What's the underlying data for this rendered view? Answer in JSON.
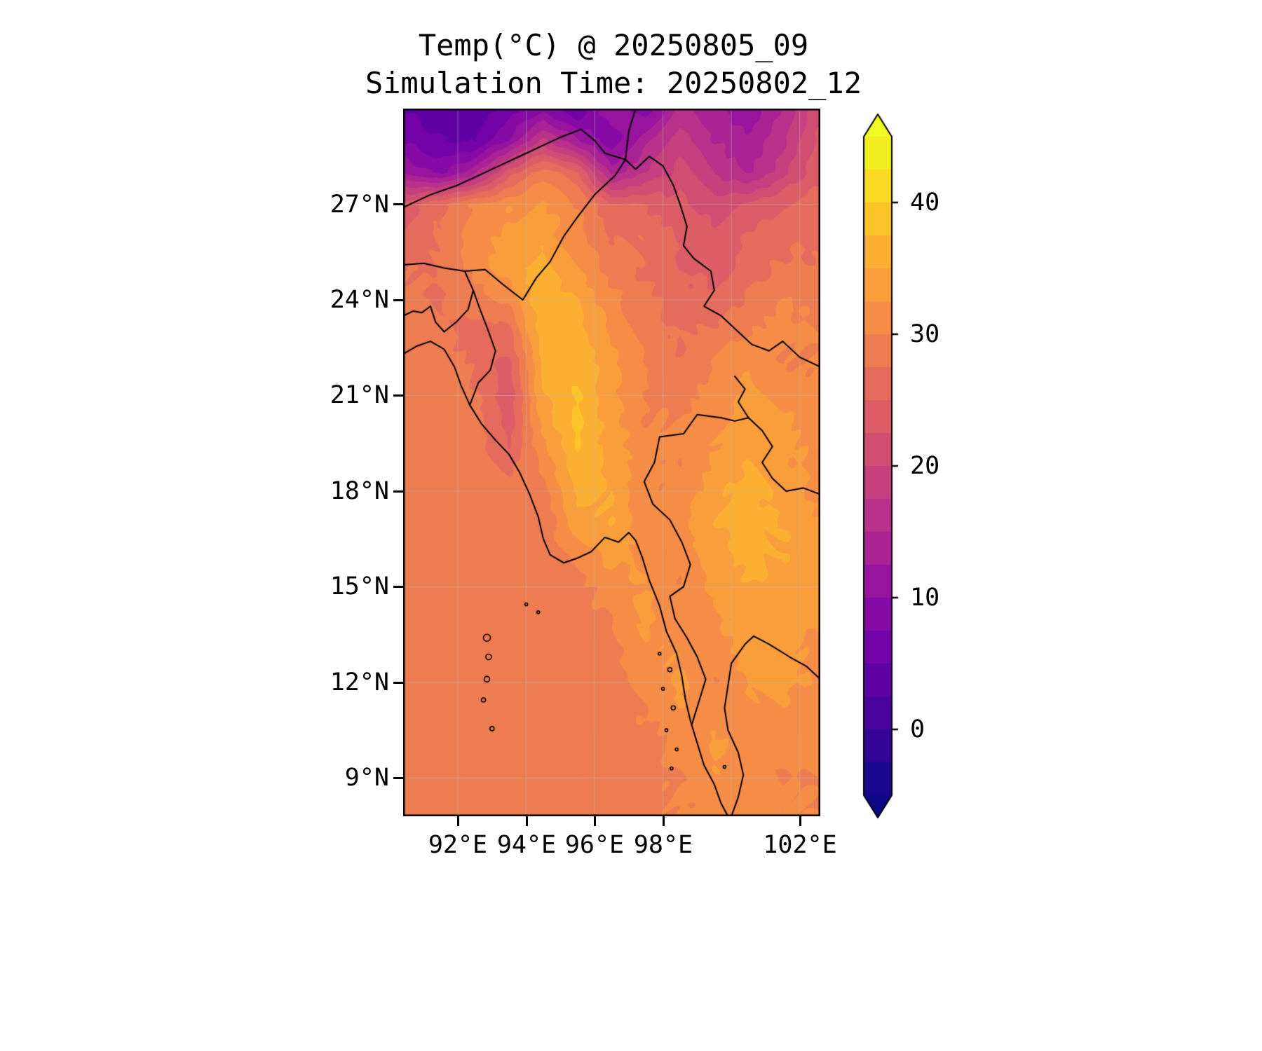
{
  "title": {
    "line1": "Temp(°C) @ 20250805_09",
    "line2": "Simulation Time: 20250802_12"
  },
  "axes": {
    "lat_ticks": [
      {
        "label": "27°N",
        "value": 27
      },
      {
        "label": "24°N",
        "value": 24
      },
      {
        "label": "21°N",
        "value": 21
      },
      {
        "label": "18°N",
        "value": 18
      },
      {
        "label": "15°N",
        "value": 15
      },
      {
        "label": "12°N",
        "value": 12
      },
      {
        "label": "9°N",
        "value": 9
      }
    ],
    "lon_ticks": [
      {
        "label": "92°E",
        "value": 92
      },
      {
        "label": "94°E",
        "value": 94
      },
      {
        "label": "96°E",
        "value": 96
      },
      {
        "label": "98°E",
        "value": 98
      },
      {
        "label": "102°E",
        "value": 102
      }
    ]
  },
  "colorbar": {
    "ticks": [
      {
        "label": "40",
        "value": 40
      },
      {
        "label": "30",
        "value": 30
      },
      {
        "label": "20",
        "value": 20
      },
      {
        "label": "10",
        "value": 10
      },
      {
        "label": "0",
        "value": 0
      }
    ],
    "vmin": -5,
    "vmax": 45,
    "step": 2.5,
    "extend": "both"
  },
  "chart_data": {
    "type": "heatmap",
    "title": "Temp(°C) @ 20250805_09",
    "subtitle": "Simulation Time: 20250802_12",
    "units": "°C",
    "lon_range": [
      90.4,
      102.6
    ],
    "lat_range": [
      7.8,
      30.0
    ],
    "value_range": [
      -5,
      45
    ],
    "level_step": 2.5,
    "colormap": "plasma",
    "colormap_stops": [
      [
        0.0,
        "#0d0887"
      ],
      [
        0.1,
        "#41049d"
      ],
      [
        0.2,
        "#6a00a8"
      ],
      [
        0.3,
        "#8f0da4"
      ],
      [
        0.4,
        "#b12a90"
      ],
      [
        0.5,
        "#cc4778"
      ],
      [
        0.6,
        "#e16462"
      ],
      [
        0.7,
        "#f2844b"
      ],
      [
        0.8,
        "#fca636"
      ],
      [
        0.9,
        "#fcce25"
      ],
      [
        1.0,
        "#f0f921"
      ]
    ],
    "gridlines": {
      "lons": [
        92,
        94,
        96,
        98,
        100,
        102
      ],
      "lats": [
        27,
        24,
        21,
        18,
        15,
        12,
        9
      ]
    },
    "grid_lons": [
      90.5,
      91.5,
      92.5,
      93.5,
      94.5,
      95.5,
      96.5,
      97.5,
      98.5,
      99.5,
      100.5,
      101.5,
      102.5
    ],
    "grid_lats": [
      30,
      29,
      28,
      27,
      26,
      25,
      24,
      23,
      22,
      21,
      20,
      19,
      18,
      17,
      16,
      15,
      14,
      13,
      12,
      11,
      10,
      9,
      8
    ],
    "values": [
      [
        5,
        3,
        3,
        6,
        9,
        5,
        12,
        8,
        16,
        13,
        10,
        15,
        22
      ],
      [
        7,
        5,
        5,
        10,
        18,
        13,
        8,
        14,
        19,
        15,
        13,
        17,
        23
      ],
      [
        12,
        9,
        14,
        24,
        29,
        25,
        14,
        18,
        21,
        17,
        15,
        19,
        24
      ],
      [
        24,
        27,
        30,
        32,
        33,
        30,
        25,
        25,
        23,
        21,
        23,
        25,
        26
      ],
      [
        26,
        28,
        31,
        33,
        34,
        31,
        27,
        27,
        25,
        23,
        25,
        27,
        27
      ],
      [
        27,
        28,
        31,
        34,
        36,
        33,
        29,
        27,
        25,
        24,
        26,
        28,
        28
      ],
      [
        28,
        27,
        29,
        31,
        37,
        35,
        31,
        28,
        26,
        26,
        28,
        30,
        29
      ],
      [
        29,
        28,
        26,
        27,
        37,
        36,
        32,
        29,
        27,
        28,
        30,
        31,
        30
      ],
      [
        29,
        29,
        27,
        24,
        36,
        37,
        33,
        30,
        28,
        30,
        32,
        30,
        30
      ],
      [
        29,
        29,
        28,
        23,
        35,
        38,
        33,
        30,
        29,
        31,
        33,
        32,
        31
      ],
      [
        29,
        29,
        29,
        24,
        33,
        38,
        34,
        30,
        30,
        32,
        34,
        33,
        31
      ],
      [
        29,
        29,
        29,
        26,
        31,
        37,
        34,
        31,
        30,
        33,
        35,
        33,
        32
      ],
      [
        29,
        29,
        29,
        29,
        29,
        36,
        35,
        30,
        31,
        34,
        36,
        34,
        32
      ],
      [
        29,
        29,
        29,
        29,
        28,
        34,
        35,
        31,
        32,
        35,
        36,
        35,
        33
      ],
      [
        29,
        29,
        29,
        29,
        29,
        30,
        34,
        32,
        30,
        34,
        36,
        35,
        33
      ],
      [
        29,
        29,
        29,
        29,
        29,
        29,
        31,
        33,
        30,
        33,
        35,
        34,
        33
      ],
      [
        29,
        29,
        29,
        29,
        29,
        29,
        30,
        33,
        31,
        32,
        34,
        34,
        33
      ],
      [
        29,
        29,
        29,
        29,
        29,
        29,
        29,
        32,
        32,
        31,
        34,
        33,
        32
      ],
      [
        29,
        29,
        29,
        29,
        29,
        29,
        29,
        31,
        33,
        30,
        33,
        33,
        32
      ],
      [
        29,
        29,
        29,
        29,
        29,
        29,
        29,
        30,
        32,
        31,
        32,
        32,
        31
      ],
      [
        29,
        29,
        29,
        29,
        29,
        29,
        29,
        29,
        31,
        33,
        31,
        31,
        31
      ],
      [
        29,
        29,
        29,
        29,
        29,
        29,
        29,
        29,
        30,
        32,
        31,
        30,
        30
      ],
      [
        29,
        29,
        29,
        29,
        29,
        29,
        29,
        29,
        30,
        31,
        32,
        30,
        30
      ]
    ],
    "coastlines": [
      {
        "name": "bengal-myanmar-coast",
        "points": [
          [
            90.4,
            22.3
          ],
          [
            90.8,
            22.55
          ],
          [
            91.2,
            22.7
          ],
          [
            91.6,
            22.45
          ],
          [
            91.9,
            21.9
          ],
          [
            92.1,
            21.3
          ],
          [
            92.35,
            20.7
          ],
          [
            92.7,
            20.1
          ],
          [
            93.1,
            19.6
          ],
          [
            93.5,
            19.15
          ],
          [
            93.8,
            18.6
          ],
          [
            94.1,
            17.9
          ],
          [
            94.35,
            17.2
          ],
          [
            94.5,
            16.5
          ],
          [
            94.7,
            16.0
          ],
          [
            95.1,
            15.75
          ],
          [
            95.5,
            15.9
          ],
          [
            95.9,
            16.1
          ],
          [
            96.3,
            16.55
          ],
          [
            96.7,
            16.4
          ],
          [
            97.0,
            16.7
          ],
          [
            97.2,
            16.45
          ],
          [
            97.4,
            15.9
          ],
          [
            97.6,
            15.2
          ],
          [
            97.9,
            14.4
          ],
          [
            98.1,
            13.6
          ],
          [
            98.4,
            12.9
          ],
          [
            98.55,
            12.2
          ],
          [
            98.65,
            11.5
          ],
          [
            98.8,
            10.8
          ],
          [
            99.0,
            10.1
          ],
          [
            99.2,
            9.4
          ],
          [
            99.5,
            8.8
          ],
          [
            99.7,
            8.2
          ],
          [
            99.9,
            7.8
          ]
        ]
      },
      {
        "name": "gulf-of-thailand-coast",
        "points": [
          [
            100.0,
            7.8
          ],
          [
            100.2,
            8.4
          ],
          [
            100.35,
            9.1
          ],
          [
            100.2,
            9.8
          ],
          [
            99.9,
            10.5
          ],
          [
            99.8,
            11.2
          ],
          [
            99.9,
            11.9
          ],
          [
            100.0,
            12.6
          ],
          [
            100.4,
            13.2
          ],
          [
            100.65,
            13.45
          ],
          [
            101.1,
            13.2
          ],
          [
            101.7,
            12.8
          ],
          [
            102.2,
            12.5
          ],
          [
            102.6,
            12.1
          ]
        ]
      },
      {
        "name": "bangladesh-border",
        "points": [
          [
            90.4,
            25.1
          ],
          [
            91.0,
            25.15
          ],
          [
            91.6,
            25.0
          ],
          [
            92.2,
            24.9
          ],
          [
            92.45,
            24.3
          ],
          [
            92.3,
            23.7
          ],
          [
            91.95,
            23.3
          ],
          [
            91.6,
            23.0
          ],
          [
            91.35,
            23.3
          ],
          [
            91.2,
            23.8
          ],
          [
            90.95,
            23.6
          ],
          [
            90.7,
            23.65
          ],
          [
            90.4,
            23.5
          ]
        ]
      },
      {
        "name": "india-myanmar-border",
        "points": [
          [
            92.45,
            24.3
          ],
          [
            92.65,
            23.7
          ],
          [
            92.9,
            23.0
          ],
          [
            93.1,
            22.4
          ],
          [
            92.95,
            21.8
          ],
          [
            92.6,
            21.4
          ],
          [
            92.35,
            20.7
          ]
        ]
      },
      {
        "name": "myanmar-china-border",
        "points": [
          [
            92.2,
            24.9
          ],
          [
            92.8,
            24.95
          ],
          [
            93.3,
            24.5
          ],
          [
            93.9,
            24.0
          ],
          [
            94.3,
            24.7
          ],
          [
            94.7,
            25.2
          ],
          [
            95.1,
            26.0
          ],
          [
            95.5,
            26.6
          ],
          [
            96.0,
            27.3
          ],
          [
            96.6,
            27.9
          ],
          [
            96.9,
            28.4
          ],
          [
            97.2,
            28.1
          ],
          [
            97.6,
            28.5
          ],
          [
            98.0,
            28.2
          ],
          [
            98.3,
            27.6
          ],
          [
            98.5,
            27.0
          ],
          [
            98.7,
            26.3
          ],
          [
            98.6,
            25.7
          ],
          [
            98.9,
            25.3
          ],
          [
            99.4,
            24.9
          ],
          [
            99.5,
            24.3
          ],
          [
            99.2,
            23.8
          ],
          [
            99.7,
            23.5
          ],
          [
            100.2,
            23.0
          ],
          [
            100.6,
            22.6
          ],
          [
            101.1,
            22.4
          ],
          [
            101.5,
            22.7
          ],
          [
            102.0,
            22.2
          ],
          [
            102.6,
            21.9
          ]
        ]
      },
      {
        "name": "china-top-border",
        "points": [
          [
            97.2,
            30.0
          ],
          [
            97.0,
            29.3
          ],
          [
            96.9,
            28.4
          ]
        ]
      },
      {
        "name": "himalaya-border",
        "points": [
          [
            90.4,
            26.9
          ],
          [
            91.2,
            27.3
          ],
          [
            92.0,
            27.6
          ],
          [
            92.6,
            27.9
          ],
          [
            93.2,
            28.2
          ],
          [
            93.8,
            28.5
          ],
          [
            94.4,
            28.8
          ],
          [
            95.0,
            29.1
          ],
          [
            95.6,
            29.35
          ],
          [
            96.0,
            29.0
          ],
          [
            96.3,
            28.6
          ],
          [
            96.9,
            28.4
          ]
        ]
      },
      {
        "name": "thailand-myanmar-border",
        "points": [
          [
            99.7,
            20.3
          ],
          [
            99.0,
            20.4
          ],
          [
            98.6,
            19.8
          ],
          [
            97.9,
            19.7
          ],
          [
            97.75,
            18.9
          ],
          [
            97.45,
            18.3
          ],
          [
            97.7,
            17.6
          ],
          [
            98.2,
            17.1
          ],
          [
            98.55,
            16.4
          ],
          [
            98.8,
            15.7
          ],
          [
            98.6,
            15.0
          ],
          [
            98.2,
            14.7
          ],
          [
            98.35,
            14.0
          ],
          [
            98.7,
            13.4
          ],
          [
            99.0,
            12.8
          ],
          [
            99.25,
            12.1
          ],
          [
            99.05,
            11.4
          ],
          [
            98.85,
            10.7
          ]
        ]
      },
      {
        "name": "laos-thailand-border",
        "points": [
          [
            100.1,
            21.6
          ],
          [
            100.4,
            21.2
          ],
          [
            100.2,
            20.8
          ],
          [
            100.5,
            20.3
          ],
          [
            100.1,
            20.2
          ],
          [
            99.7,
            20.3
          ]
        ]
      },
      {
        "name": "mekong-border",
        "points": [
          [
            100.5,
            20.3
          ],
          [
            100.9,
            19.9
          ],
          [
            101.2,
            19.4
          ],
          [
            100.9,
            18.9
          ],
          [
            101.2,
            18.4
          ],
          [
            101.6,
            18.0
          ],
          [
            102.1,
            18.1
          ],
          [
            102.6,
            17.9
          ]
        ]
      }
    ],
    "islands": [
      [
        92.85,
        13.4,
        5
      ],
      [
        92.9,
        12.8,
        4
      ],
      [
        92.85,
        12.1,
        4
      ],
      [
        92.75,
        11.45,
        3
      ],
      [
        93.0,
        10.55,
        3
      ],
      [
        94.0,
        14.45,
        2
      ],
      [
        94.35,
        14.2,
        2
      ],
      [
        97.9,
        12.9,
        2
      ],
      [
        98.2,
        12.4,
        3
      ],
      [
        98.0,
        11.8,
        2
      ],
      [
        98.3,
        11.2,
        3
      ],
      [
        98.1,
        10.5,
        2
      ],
      [
        98.4,
        9.9,
        2
      ],
      [
        98.25,
        9.3,
        2
      ],
      [
        99.8,
        9.35,
        2
      ]
    ]
  }
}
